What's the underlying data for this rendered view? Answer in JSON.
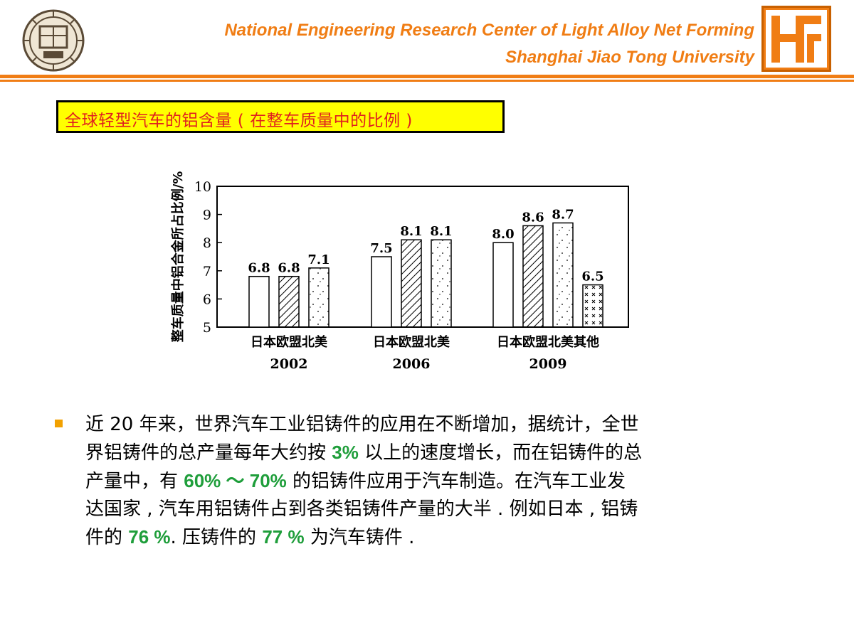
{
  "header": {
    "title_line1": "National Engineering Research Center of Light Alloy Net Forming",
    "title_line2": "Shanghai Jiao Tong University",
    "accent_color": "#f07d14",
    "left_logo_icon": "university-seal-logo-icon",
    "right_logo_icon": "research-center-logo-icon"
  },
  "caption": {
    "text": "全球轻型汽车的铝含量 (  在整车质量中的比例 )"
  },
  "chart_data": {
    "type": "bar",
    "ylabel": "整车质量中铝合金所占比例/%",
    "ylim": [
      5,
      10
    ],
    "yticks": [
      5,
      6,
      7,
      8,
      9,
      10
    ],
    "grid": false,
    "legend": "none",
    "groups": [
      {
        "year": "2002",
        "categories_label": "日本欧盟北美",
        "bars": [
          {
            "category": "日本",
            "value": 6.8,
            "label": "6.8",
            "pattern": "empty"
          },
          {
            "category": "欧盟",
            "value": 6.8,
            "label": "6.8",
            "pattern": "hatched"
          },
          {
            "category": "北美",
            "value": 7.1,
            "label": "7.1",
            "pattern": "dotted"
          }
        ]
      },
      {
        "year": "2006",
        "categories_label": "日本欧盟北美",
        "bars": [
          {
            "category": "日本",
            "value": 7.5,
            "label": "7.5",
            "pattern": "empty"
          },
          {
            "category": "欧盟",
            "value": 8.1,
            "label": "8.1",
            "pattern": "hatched"
          },
          {
            "category": "北美",
            "value": 8.1,
            "label": "8.1",
            "pattern": "dotted"
          }
        ]
      },
      {
        "year": "2009",
        "categories_label": "日本欧盟北美其他",
        "bars": [
          {
            "category": "日本",
            "value": 8.0,
            "label": "8.0",
            "pattern": "empty"
          },
          {
            "category": "欧盟",
            "value": 8.6,
            "label": "8.6",
            "pattern": "hatched"
          },
          {
            "category": "北美",
            "value": 8.7,
            "label": "8.7",
            "pattern": "dotted"
          },
          {
            "category": "其他",
            "value": 6.5,
            "label": "6.5",
            "pattern": "crosses"
          }
        ]
      }
    ]
  },
  "body": {
    "bullet_color": "#f2a100",
    "highlight_color": "#1f9e3b",
    "line1": "近 20  年来，世界汽车工业铝铸件的应用在不断增加，据统计，全世",
    "line2_a": "界铝铸件的总产量每年大约按 ",
    "line2_h": "3%",
    "line2_b": " 以上的速度增长，而在铝铸件的总",
    "line3_a": "产量中，有 ",
    "line3_h1": "60%  ～  70%",
    "line3_b": " 的铝铸件应用于汽车制造。在汽车工业发",
    "line4": "达国家 , 汽车用铝铸件占到各类铝铸件产量的大半 .  例如日本 , 铝铸",
    "line5_a": "件的 ",
    "line5_h1": "76 %",
    "line5_b": ".  压铸件的 ",
    "line5_h2": "77 %",
    "line5_c": " 为汽车铸件 ."
  }
}
